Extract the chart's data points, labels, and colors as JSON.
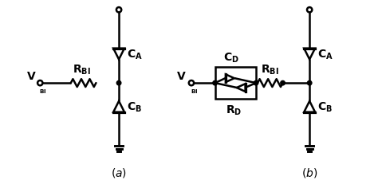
{
  "bg_color": "#ffffff",
  "line_color": "#000000",
  "line_width": 1.8,
  "fig_width": 4.74,
  "fig_height": 2.32,
  "dpi": 100
}
